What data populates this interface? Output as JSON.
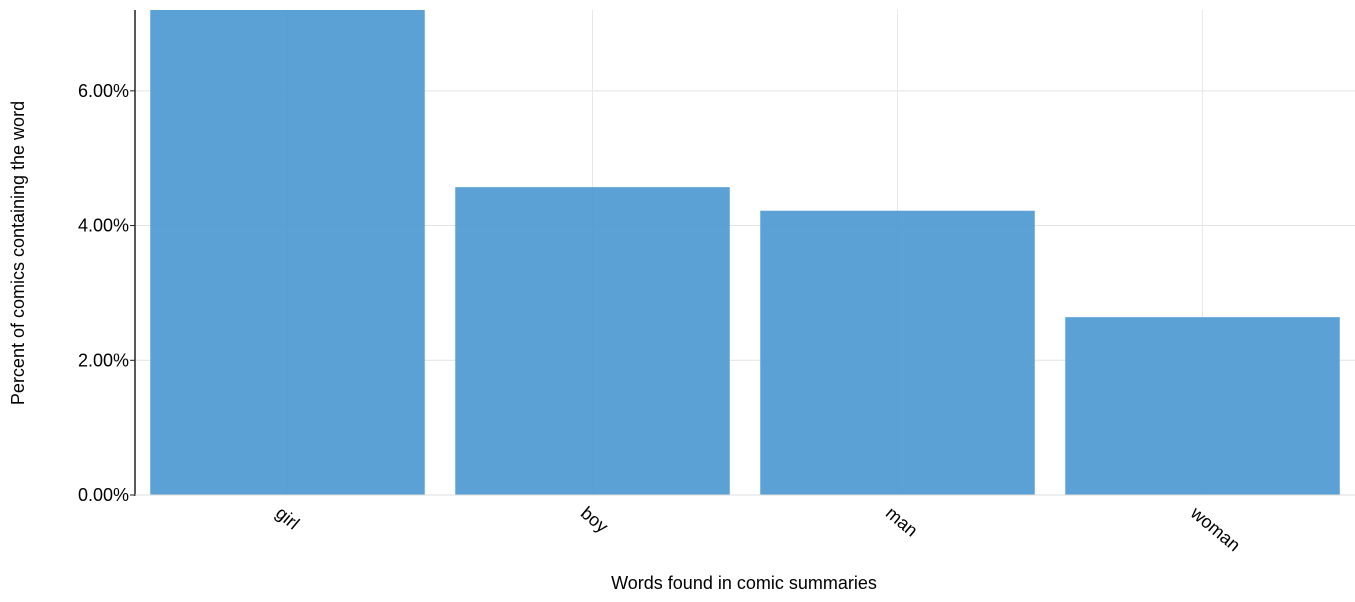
{
  "chart_data": {
    "type": "bar",
    "title": "",
    "xlabel": "Words found in comic summaries",
    "ylabel": "Percent of comics containing the word",
    "categories": [
      "girl",
      "boy",
      "man",
      "woman"
    ],
    "values": [
      7.2,
      4.57,
      4.22,
      2.64
    ],
    "ylim": [
      0,
      7.2
    ],
    "yticks": [
      0,
      2,
      4,
      6
    ],
    "ytick_labels": [
      "0.00%",
      "2.00%",
      "4.00%",
      "6.00%"
    ],
    "grid": true,
    "bar_color": "#4a97d0"
  }
}
